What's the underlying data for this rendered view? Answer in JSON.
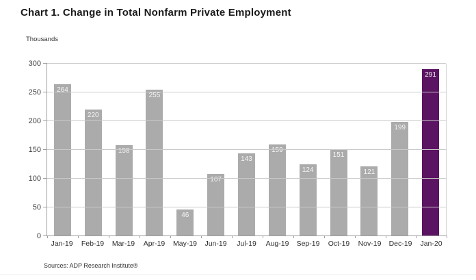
{
  "title": "Chart 1. Change in Total Nonfarm Private Employment",
  "units_label": "Thousands",
  "source_note": "Sources: ADP Research Institute®",
  "chart_data": {
    "type": "bar",
    "title": "Chart 1. Change in Total Nonfarm Private Employment",
    "ylabel": "Thousands",
    "xlabel": "",
    "categories": [
      "Jan-19",
      "Feb-19",
      "Mar-19",
      "Apr-19",
      "May-19",
      "Jun-19",
      "Jul-19",
      "Aug-19",
      "Sep-19",
      "Oct-19",
      "Nov-19",
      "Dec-19",
      "Jan-20"
    ],
    "values": [
      264,
      220,
      158,
      255,
      46,
      107,
      143,
      159,
      124,
      151,
      121,
      199,
      291
    ],
    "ylim": [
      0,
      300
    ],
    "yticks": [
      0,
      50,
      100,
      150,
      200,
      250,
      300
    ],
    "grid": true,
    "legend": false,
    "bar_color": "#ababab",
    "highlight_index": 12,
    "highlight_color": "#5b1462",
    "value_label_color": "#f2f2f2"
  }
}
